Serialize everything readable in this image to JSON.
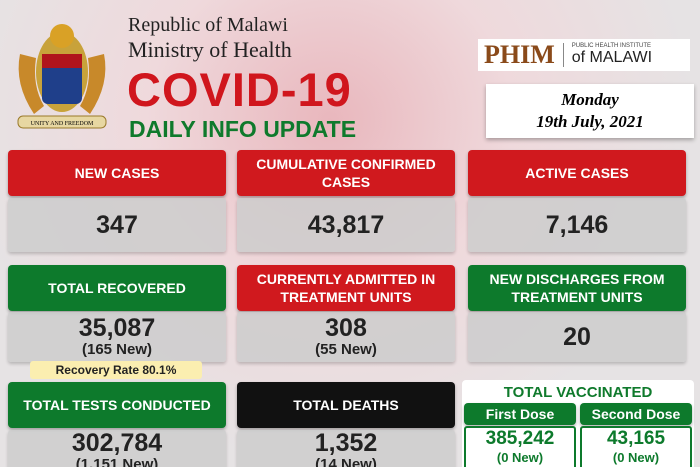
{
  "header": {
    "line1": "Republic of Malawi",
    "line2": "Ministry of Health",
    "title": "COVID-19",
    "subtitle": "DAILY INFO UPDATE",
    "motto": "UNITY AND FREEDOM"
  },
  "logo": {
    "name": "PHIM",
    "line1": "PUBLIC HEALTH INSTITUTE",
    "line2": "of MALAWI"
  },
  "date": {
    "day": "Monday",
    "date": "19th July, 2021"
  },
  "cards": [
    {
      "title": "NEW CASES",
      "value": "347"
    },
    {
      "title": "CUMULATIVE CONFIRMED CASES",
      "value": "43,817"
    },
    {
      "title": "ACTIVE CASES",
      "value": "7,146"
    },
    {
      "title": "TOTAL RECOVERED",
      "value": "35,087",
      "new": "(165 New)",
      "note": "Recovery Rate 80.1%"
    },
    {
      "title": "CURRENTLY ADMITTED IN TREATMENT UNITS",
      "value": "308",
      "new": "(55 New)"
    },
    {
      "title": "NEW DISCHARGES FROM TREATMENT UNITS",
      "value": "20"
    },
    {
      "title": "TOTAL TESTS CONDUCTED",
      "value": "302,784",
      "new": "(1,151 New)"
    },
    {
      "title": "TOTAL DEATHS",
      "value": "1,352",
      "new": "(14 New)"
    }
  ],
  "vaccinated": {
    "title": "TOTAL VACCINATED",
    "doses": [
      {
        "title": "First Dose",
        "value": "385,242",
        "new": "(0 New)"
      },
      {
        "title": "Second Dose",
        "value": "43,165",
        "new": "(0 New)"
      }
    ]
  }
}
